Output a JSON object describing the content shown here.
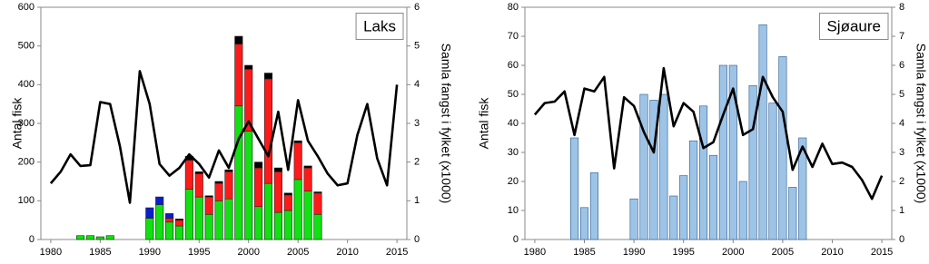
{
  "chart_data": [
    {
      "type": "bar",
      "stacked": true,
      "annotation": "Laks",
      "ylabel": "Antal fisk",
      "y2label": "Samla fangst i fylket (x1000)",
      "x": [
        1980,
        1981,
        1982,
        1983,
        1984,
        1985,
        1986,
        1987,
        1988,
        1989,
        1990,
        1991,
        1992,
        1993,
        1994,
        1995,
        1996,
        1997,
        1998,
        1999,
        2000,
        2001,
        2002,
        2003,
        2004,
        2005,
        2006,
        2007,
        2008,
        2009,
        2010,
        2011,
        2012,
        2013,
        2014,
        2015
      ],
      "xlim": [
        1979,
        2016
      ],
      "xticks": [
        1980,
        1985,
        1990,
        1995,
        2000,
        2005,
        2010,
        2015
      ],
      "ylim": [
        0,
        600
      ],
      "yticks": [
        0,
        100,
        200,
        300,
        400,
        500,
        600
      ],
      "y2lim": [
        0,
        6
      ],
      "y2ticks": [
        0,
        1,
        2,
        3,
        4,
        5,
        6
      ],
      "series": [
        {
          "color": "#11e011",
          "values": [
            null,
            null,
            null,
            10,
            10,
            7,
            10,
            null,
            null,
            null,
            55,
            90,
            45,
            35,
            130,
            110,
            65,
            100,
            105,
            345,
            280,
            85,
            145,
            70,
            75,
            155,
            125,
            65,
            null,
            null,
            null,
            null,
            null,
            null,
            null,
            null
          ]
        },
        {
          "color": "#ff1a1a",
          "values": [
            null,
            null,
            null,
            null,
            null,
            null,
            null,
            null,
            null,
            null,
            null,
            null,
            10,
            15,
            75,
            60,
            45,
            45,
            70,
            160,
            160,
            100,
            270,
            105,
            40,
            95,
            60,
            55,
            null,
            null,
            null,
            null,
            null,
            null,
            null,
            null
          ]
        },
        {
          "color": "#0a1ecc",
          "values": [
            null,
            null,
            null,
            null,
            null,
            null,
            null,
            null,
            null,
            null,
            27,
            20,
            12,
            null,
            null,
            null,
            null,
            null,
            null,
            null,
            null,
            null,
            null,
            null,
            null,
            null,
            null,
            null,
            null,
            null,
            null,
            null,
            null,
            null,
            null,
            null
          ]
        },
        {
          "color": "#000000",
          "values": [
            null,
            null,
            null,
            null,
            null,
            null,
            null,
            null,
            null,
            null,
            null,
            null,
            null,
            3,
            10,
            5,
            3,
            5,
            5,
            20,
            10,
            15,
            15,
            10,
            5,
            5,
            5,
            3,
            null,
            null,
            null,
            null,
            null,
            null,
            null,
            null
          ]
        },
        {
          "type": "line",
          "axis": "y2",
          "color": "#000000",
          "values": [
            1.45,
            1.75,
            2.2,
            1.9,
            1.92,
            3.55,
            3.5,
            2.4,
            0.95,
            4.35,
            3.5,
            1.95,
            1.65,
            1.85,
            2.2,
            1.95,
            1.6,
            2.3,
            1.85,
            2.6,
            3.05,
            2.6,
            2.15,
            3.3,
            1.8,
            3.6,
            2.55,
            2.15,
            1.7,
            1.4,
            1.45,
            2.7,
            3.5,
            2.1,
            1.4,
            4.0
          ]
        }
      ]
    },
    {
      "type": "bar",
      "stacked": true,
      "annotation": "Sjøaure",
      "ylabel": "Antal fisk",
      "y2label": "Samla fangst i fylket (x1000)",
      "x": [
        1980,
        1981,
        1982,
        1983,
        1984,
        1985,
        1986,
        1987,
        1988,
        1989,
        1990,
        1991,
        1992,
        1993,
        1994,
        1995,
        1996,
        1997,
        1998,
        1999,
        2000,
        2001,
        2002,
        2003,
        2004,
        2005,
        2006,
        2007,
        2008,
        2009,
        2010,
        2011,
        2012,
        2013,
        2014,
        2015
      ],
      "xlim": [
        1979,
        2016
      ],
      "xticks": [
        1980,
        1985,
        1990,
        1995,
        2000,
        2005,
        2010,
        2015
      ],
      "ylim": [
        0,
        80
      ],
      "yticks": [
        0,
        10,
        20,
        30,
        40,
        50,
        60,
        70,
        80
      ],
      "y2lim": [
        0,
        8
      ],
      "y2ticks": [
        0,
        1,
        2,
        3,
        4,
        5,
        6,
        7,
        8
      ],
      "series": [
        {
          "color": "#9dc3e6",
          "values": [
            null,
            null,
            null,
            null,
            35,
            11,
            23,
            null,
            null,
            null,
            14,
            50,
            48,
            50,
            15,
            22,
            34,
            46,
            29,
            60,
            60,
            20,
            53,
            74,
            47,
            63,
            18,
            35,
            null,
            null,
            null,
            null,
            null,
            null,
            null,
            null
          ]
        },
        {
          "type": "line",
          "axis": "y2",
          "color": "#000000",
          "values": [
            4.3,
            4.7,
            4.75,
            5.1,
            3.6,
            5.2,
            5.1,
            5.6,
            2.45,
            4.9,
            4.6,
            3.7,
            3.0,
            5.9,
            3.9,
            4.7,
            4.4,
            3.15,
            3.35,
            4.3,
            5.2,
            3.6,
            3.8,
            5.6,
            4.9,
            4.4,
            2.4,
            3.2,
            2.5,
            3.3,
            2.6,
            2.65,
            2.5,
            2.05,
            1.4,
            2.2
          ]
        }
      ]
    }
  ]
}
